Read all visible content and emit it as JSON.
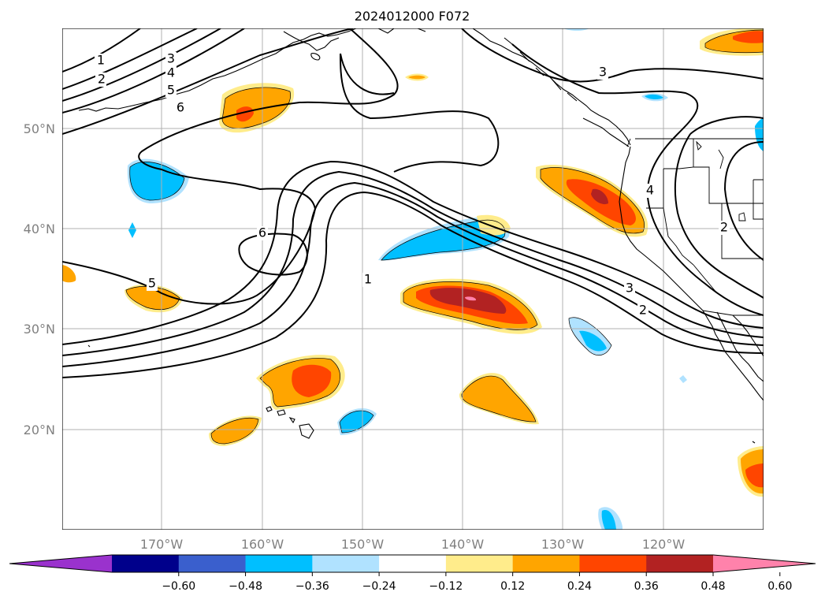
{
  "title": "2024012000 F072",
  "map": {
    "lat_labels": [
      "50°N",
      "40°N",
      "30°N",
      "20°N"
    ],
    "lon_labels": [
      "170°W",
      "160°W",
      "150°W",
      "140°W",
      "130°W",
      "120°W"
    ],
    "contour_labels": [
      "1",
      "2",
      "3",
      "4",
      "5",
      "6",
      "6",
      "5",
      "1",
      "3",
      "2",
      "3",
      "4",
      "2"
    ],
    "gridlines": true
  },
  "colorbar": {
    "colors": [
      "#9a32cd",
      "#00008b",
      "#3a5fcd",
      "#00bfff",
      "#b0e2ff",
      "#ffffff",
      "#ffec8b",
      "#ffa500",
      "#ff4500",
      "#b22222",
      "#ff82ab"
    ],
    "tick_labels": [
      "−0.60",
      "−0.48",
      "−0.36",
      "−0.24",
      "−0.12",
      "0.12",
      "0.24",
      "0.36",
      "0.48",
      "0.60"
    ],
    "extend": "both"
  }
}
